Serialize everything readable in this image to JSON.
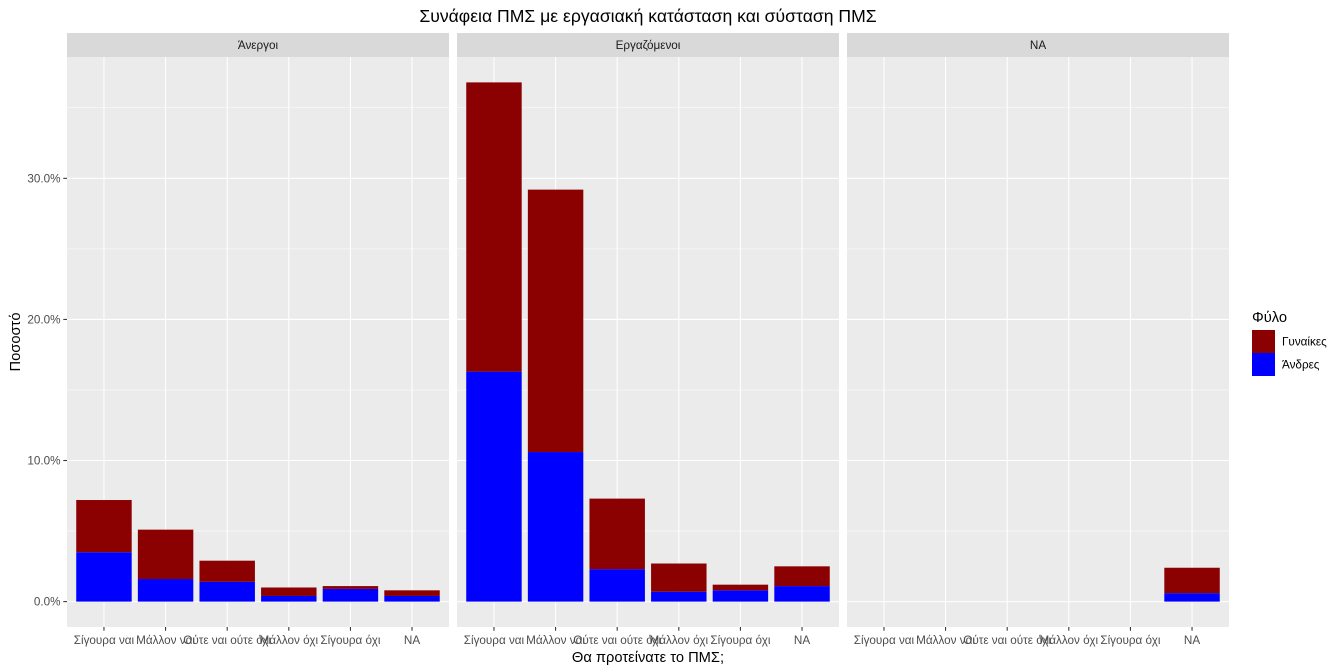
{
  "chart_data": {
    "type": "bar",
    "stacked": true,
    "title": "Συνάφεια ΠΜΣ με εργασιακή κατάσταση και σύσταση ΠΜΣ",
    "xlabel": "Θα προτείνατε το ΠΜΣ;",
    "ylabel": "Ποσοστό",
    "categories": [
      "Σίγουρα ναι",
      "Μάλλον ναι",
      "Ούτε ναι ούτε όχι",
      "Μάλλον όχι",
      "Σίγουρα όχι",
      "NA"
    ],
    "facets": [
      "Άνεργοι",
      "Εργαζόμενοι",
      "NA"
    ],
    "ylim": [
      -1.8,
      38.6
    ],
    "yticks": [
      0,
      10,
      20,
      30
    ],
    "ytick_labels": [
      "0.0%",
      "10.0%",
      "20.0%",
      "30.0%"
    ],
    "grid": true,
    "legend": {
      "title": "Φύλο",
      "position": "right"
    },
    "series": [
      {
        "name": "Γυναίκες",
        "color": "#8B0000",
        "values": [
          [
            3.7,
            3.5,
            1.5,
            0.6,
            0.2,
            0.4
          ],
          [
            20.5,
            18.6,
            5.0,
            2.0,
            0.4,
            1.4
          ],
          [
            null,
            null,
            null,
            null,
            null,
            1.8
          ]
        ]
      },
      {
        "name": "Άνδρες",
        "color": "#0000FF",
        "values": [
          [
            3.5,
            1.6,
            1.4,
            0.4,
            0.9,
            0.4
          ],
          [
            16.3,
            10.6,
            2.3,
            0.7,
            0.8,
            1.1
          ],
          [
            null,
            null,
            null,
            null,
            null,
            0.6
          ]
        ]
      }
    ]
  }
}
